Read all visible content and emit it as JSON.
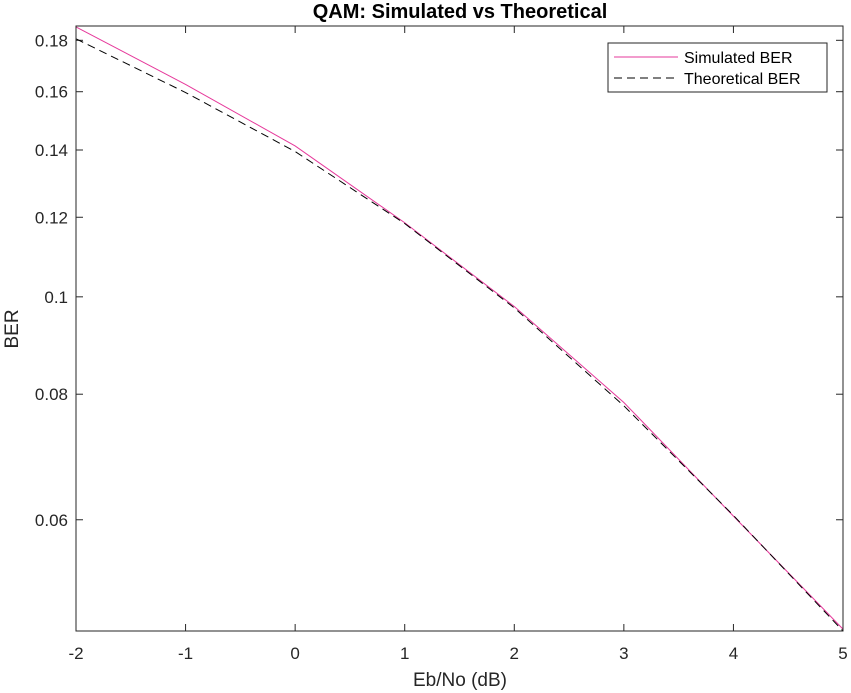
{
  "chart_data": {
    "type": "line",
    "title": "QAM: Simulated vs Theoretical",
    "xlabel": "Eb/No (dB)",
    "ylabel": "BER",
    "xlim": [
      -2,
      5
    ],
    "ylim": [
      0.0465,
      0.186
    ],
    "yscale": "log",
    "x_ticks": [
      "-2",
      "-1",
      "0",
      "1",
      "2",
      "3",
      "4",
      "5"
    ],
    "y_ticks": [
      {
        "value": 0.06,
        "label": "0.06"
      },
      {
        "value": 0.08,
        "label": "0.08"
      },
      {
        "value": 0.1,
        "label": "0.1"
      },
      {
        "value": 0.12,
        "label": "0.12"
      },
      {
        "value": 0.14,
        "label": "0.14"
      },
      {
        "value": 0.16,
        "label": "0.16"
      },
      {
        "value": 0.18,
        "label": "0.18"
      }
    ],
    "x": [
      -2,
      -1,
      0,
      1,
      2,
      3,
      4,
      5
    ],
    "series": [
      {
        "name": "Simulated BER",
        "values": [
          0.1856,
          0.1627,
          0.1413,
          0.1185,
          0.0978,
          0.0785,
          0.0605,
          0.0467
        ],
        "color": "#e6399b",
        "dash": "solid"
      },
      {
        "name": "Theoretical BER",
        "values": [
          0.1806,
          0.1597,
          0.1395,
          0.1183,
          0.0975,
          0.0779,
          0.0606,
          0.0465
        ],
        "color": "#000000",
        "dash": "dashed"
      }
    ],
    "legend_position": "top-right",
    "grid": false
  }
}
